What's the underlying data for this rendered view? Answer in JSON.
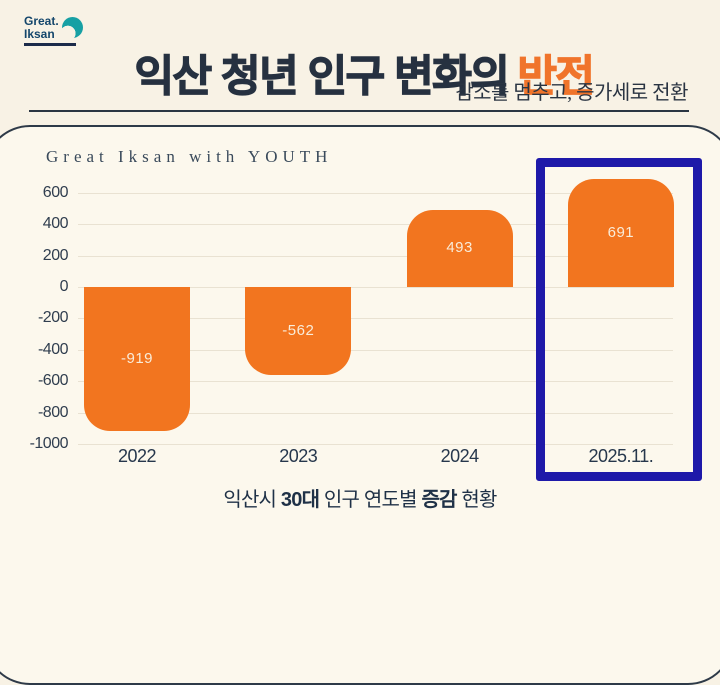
{
  "logo": {
    "line1": "Great.",
    "line2": "Iksan"
  },
  "header": {
    "title_main": "익산 청년 인구 변화의",
    "title_accent": "반전",
    "subtitle": "감소를 멈추고, 증가세로 전환"
  },
  "card": {
    "watermark": "Great Iksan with YOUTH"
  },
  "caption": {
    "part1": "익산시 ",
    "bold1": "30대",
    "part2": " 인구 연도별 ",
    "bold2": "증감",
    "part3": " 현황"
  },
  "chart_data": {
    "type": "bar",
    "title": "익산시 30대 인구 연도별 증감 현황",
    "categories": [
      "2022",
      "2023",
      "2024",
      "2025.11."
    ],
    "values": [
      -919,
      -562,
      493,
      691
    ],
    "y_ticks": [
      600,
      400,
      200,
      0,
      -200,
      -400,
      -600,
      -800,
      -1000
    ],
    "ylim": [
      -1000,
      760
    ],
    "grid": true,
    "legend": false,
    "bar_color": "#F2751F",
    "bar_label_color": "#F9ECD9",
    "grid_color": "#E9E2D2",
    "highlight_index": 3,
    "highlight_color": "#1E19A9"
  }
}
